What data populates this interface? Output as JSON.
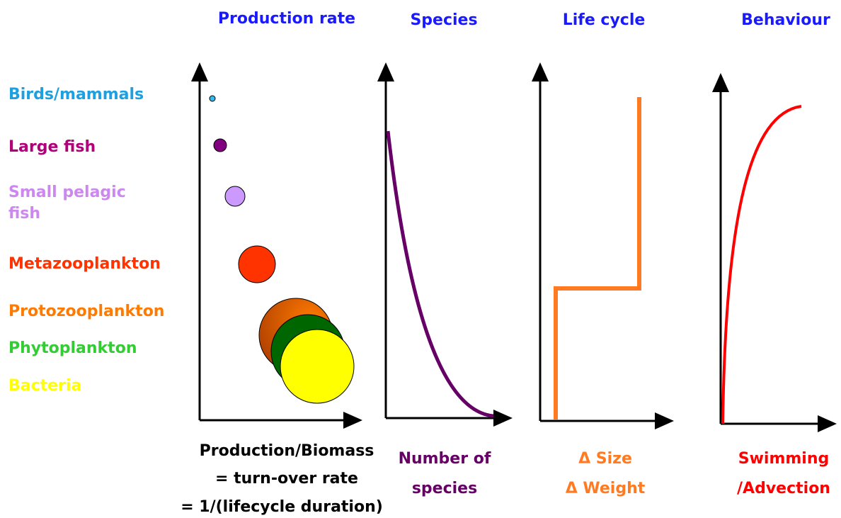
{
  "headers": [
    "Production rate",
    "Species",
    "Life cycle",
    "Behaviour"
  ],
  "levels": [
    "Birds/mammals",
    "Large fish",
    "Small pelagic fish",
    "Metazooplankton",
    "Protozooplankton",
    "Phytoplankton",
    "Bacteria"
  ],
  "captions": [
    [
      "Production/Biomass",
      "= turn-over rate",
      "= 1/(lifecycle duration)"
    ],
    [
      "Number of",
      "species"
    ],
    [
      "Δ Size",
      "Δ Weight"
    ],
    [
      "Swimming",
      "/Advection"
    ]
  ]
}
